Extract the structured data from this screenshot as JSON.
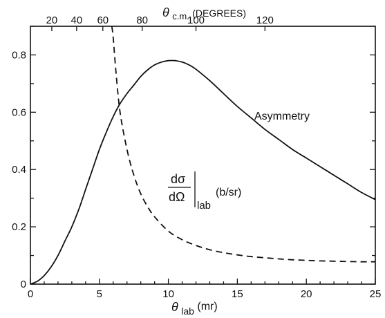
{
  "chart_data": {
    "type": "line",
    "title": "",
    "x_axis": {
      "label_symbol": "θ",
      "label_subscript": "lab",
      "label_unit": "(mr)",
      "range": [
        0,
        25
      ],
      "ticks": [
        0,
        5,
        10,
        15,
        20,
        25
      ]
    },
    "top_axis": {
      "label_symbol": "θ",
      "label_subscript": "c.m.",
      "label_unit": "(DEGREES)",
      "tick_labels": [
        "20",
        "40",
        "60",
        "80",
        "100",
        "120"
      ],
      "tick_positions_x_mr": [
        1.55,
        3.35,
        5.25,
        8.1,
        12.0,
        17.0
      ]
    },
    "y_axis": {
      "range": [
        0,
        0.9
      ],
      "ticks": [
        0,
        0.2,
        0.4,
        0.6,
        0.8
      ],
      "tick_labels": [
        "0",
        "0.2",
        "0.4",
        "0.6",
        "0.8"
      ]
    },
    "grid": false,
    "series": [
      {
        "name": "Asymmetry",
        "style": "solid",
        "x": [
          0,
          0.5,
          1,
          1.5,
          2,
          2.5,
          3,
          3.5,
          4,
          4.5,
          5,
          5.5,
          6,
          6.5,
          7,
          7.5,
          8,
          8.5,
          9,
          9.5,
          10,
          10.5,
          11,
          11.5,
          12,
          13,
          14,
          15,
          16,
          17,
          18,
          19,
          20,
          21,
          22,
          23,
          24,
          25
        ],
        "y": [
          0,
          0.01,
          0.03,
          0.06,
          0.1,
          0.15,
          0.2,
          0.26,
          0.33,
          0.4,
          0.47,
          0.53,
          0.585,
          0.63,
          0.665,
          0.695,
          0.725,
          0.748,
          0.765,
          0.775,
          0.78,
          0.78,
          0.775,
          0.765,
          0.75,
          0.71,
          0.665,
          0.62,
          0.58,
          0.54,
          0.505,
          0.47,
          0.44,
          0.41,
          0.38,
          0.35,
          0.32,
          0.295
        ]
      },
      {
        "name": "dσ/dΩ|lab (b/sr)",
        "style": "dashed",
        "x": [
          5.9,
          6.0,
          6.2,
          6.5,
          7,
          7.5,
          8,
          8.5,
          9,
          10,
          11,
          12,
          13,
          14,
          15,
          16,
          17,
          18,
          19,
          20,
          21,
          22,
          23,
          24,
          25
        ],
        "y": [
          0.9,
          0.86,
          0.74,
          0.6,
          0.47,
          0.38,
          0.315,
          0.27,
          0.235,
          0.185,
          0.155,
          0.135,
          0.12,
          0.11,
          0.102,
          0.096,
          0.092,
          0.088,
          0.085,
          0.083,
          0.081,
          0.08,
          0.079,
          0.078,
          0.078
        ]
      }
    ],
    "annotations": {
      "asymmetry": "Asymmetry",
      "xsec_numerator": "dσ",
      "xsec_denominator": "dΩ",
      "xsec_subscript": "lab",
      "xsec_unit": "(b/sr)"
    }
  }
}
